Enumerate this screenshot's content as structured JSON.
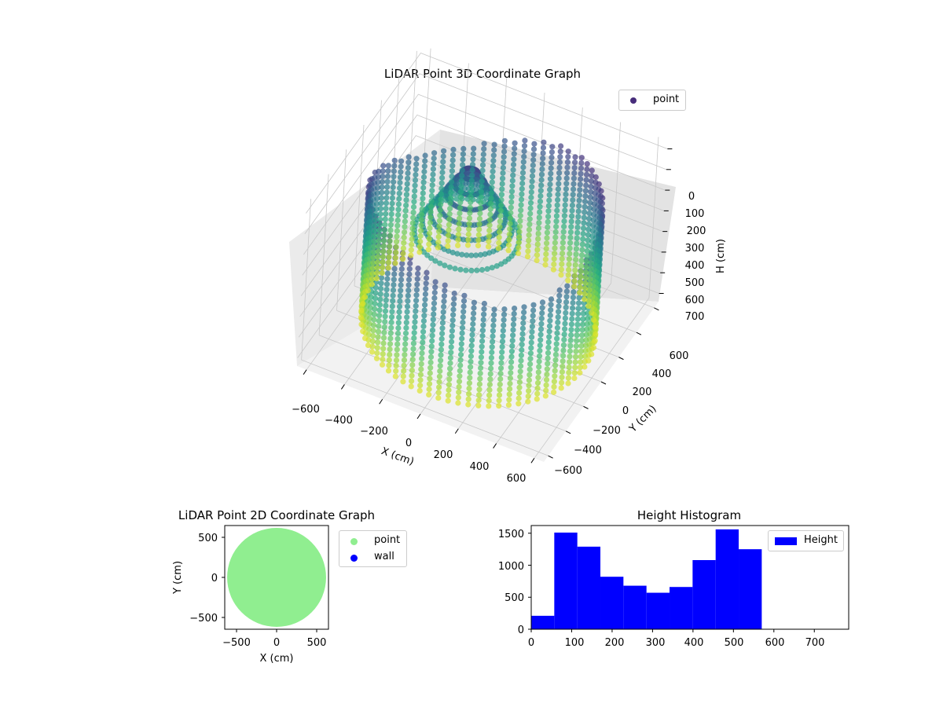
{
  "colors": {
    "viridis_dark": "#440154",
    "viridis_mid": "#21918c",
    "viridis_light": "#bddf26",
    "point_2d": "#90ee90",
    "wall_2d": "#0000ff",
    "hist_bar": "#0000ff",
    "legend_3d_marker": "#472d7b"
  },
  "chart_data": [
    {
      "type": "scatter",
      "projection": "3d",
      "title": "LiDAR Point 3D Coordinate Graph",
      "xlabel": "X (cm)",
      "ylabel": "Y (cm)",
      "zlabel": "H (cm)",
      "x_ticks": [
        "−600",
        "−400",
        "−200",
        "0",
        "200",
        "400",
        "600"
      ],
      "y_ticks": [
        "−600",
        "−400",
        "−200",
        "0",
        "200",
        "400",
        "600"
      ],
      "z_ticks": [
        "0",
        "100",
        "200",
        "300",
        "400",
        "500",
        "600",
        "700"
      ],
      "xlim": [
        -650,
        650
      ],
      "ylim": [
        -650,
        650
      ],
      "zlim": [
        0,
        780
      ],
      "z_inverted": true,
      "colormap": "viridis",
      "legend": [
        {
          "label": "point"
        }
      ],
      "legend_position": "top-right",
      "grid": true
    },
    {
      "type": "scatter",
      "title": "LiDAR Point 2D Coordinate Graph",
      "xlabel": "X (cm)",
      "ylabel": "Y (cm)",
      "x_ticks": [
        "−500",
        "0",
        "500"
      ],
      "y_ticks": [
        "500",
        "0",
        "−500"
      ],
      "xlim": [
        -650,
        650
      ],
      "ylim": [
        -650,
        650
      ],
      "series": [
        {
          "name": "point",
          "shape": "filled disk",
          "radius": 620
        },
        {
          "name": "wall",
          "shape": "none"
        }
      ],
      "legend_position": "outside right",
      "grid": false
    },
    {
      "type": "bar",
      "title": "Height Histogram",
      "x_ticks": [
        "0",
        "100",
        "200",
        "300",
        "400",
        "500",
        "600",
        "700"
      ],
      "y_ticks": [
        "0",
        "500",
        "1000",
        "1500"
      ],
      "xlim": [
        0,
        785
      ],
      "ylim": [
        0,
        1620
      ],
      "bin_edges": [
        0,
        57,
        114,
        171,
        228,
        285,
        342,
        399,
        456,
        513,
        570
      ],
      "values": [
        210,
        1510,
        1290,
        820,
        680,
        570,
        660,
        1080,
        1560,
        1250
      ],
      "legend": [
        {
          "label": "Height"
        }
      ],
      "legend_position": "upper right",
      "grid": false
    }
  ]
}
